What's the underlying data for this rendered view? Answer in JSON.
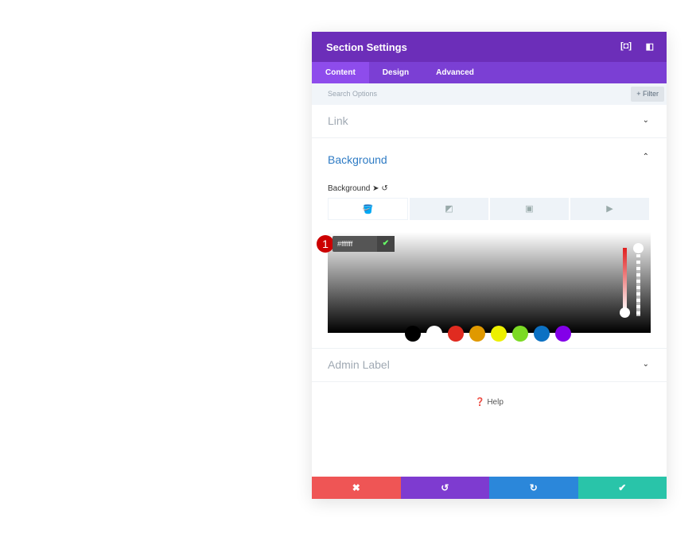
{
  "header": {
    "title": "Section Settings",
    "icons": [
      "focus-icon",
      "sidebar-icon"
    ]
  },
  "tabs": [
    {
      "label": "Content"
    },
    {
      "label": "Design"
    },
    {
      "label": "Advanced"
    }
  ],
  "search": {
    "placeholder": "Search Options",
    "filter": "+ Filter"
  },
  "sections": {
    "link": "Link",
    "background": "Background",
    "admin": "Admin Label"
  },
  "background": {
    "label": "Background",
    "hex": "#ffffff",
    "badge": "1"
  },
  "swatches": [
    "#000000",
    "#ffffff",
    "#e02b20",
    "#e09900",
    "#edf000",
    "#7cda24",
    "#0c71c3",
    "#8300e9"
  ],
  "help": "Help",
  "colors": {
    "header": "#6c2eb9",
    "tabs": "#7b3fd4",
    "cancel": "#ef5555",
    "undo": "#7e3bd0",
    "redo": "#2b87da",
    "save": "#29c4a9"
  }
}
